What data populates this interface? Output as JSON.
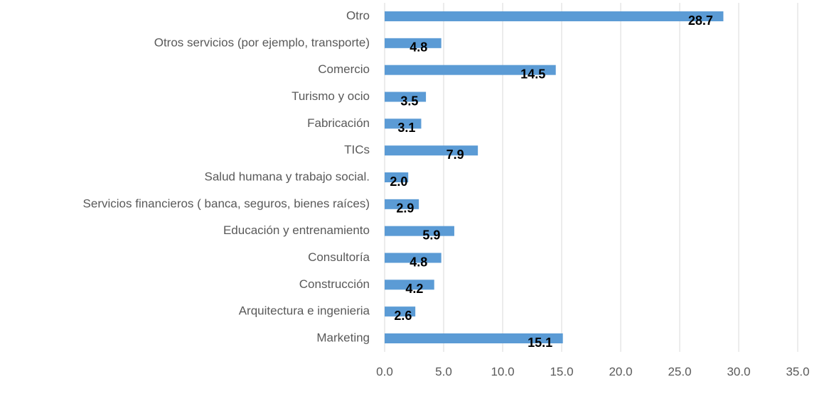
{
  "chart_data": {
    "type": "bar",
    "orientation": "horizontal",
    "categories": [
      "Otro",
      "Otros servicios (por ejemplo, transporte)",
      "Comercio ",
      "Turismo y ocio",
      "Fabricación",
      "TICs",
      "Salud humana y trabajo social.",
      "Servicios financieros ( banca, seguros, bienes raíces)",
      "Educación y entrenamiento",
      "Consultoría ",
      "Construcción",
      "Arquitectura e ingenieria",
      "Marketing"
    ],
    "values": [
      28.7,
      4.8,
      14.5,
      3.5,
      3.1,
      7.9,
      2.0,
      2.9,
      5.9,
      4.8,
      4.2,
      2.6,
      15.1
    ],
    "value_labels": [
      "28.7",
      "4.8",
      "14.5",
      "3.5",
      "3.1",
      "7.9",
      "2.0",
      "2.9",
      "5.9",
      "4.8",
      "4.2",
      "2.6",
      "15.1"
    ],
    "color": "#5b9bd5",
    "xlim": [
      0,
      35
    ],
    "xticks": [
      {
        "value": 0,
        "label": "0.0"
      },
      {
        "value": 5,
        "label": "5.0"
      },
      {
        "value": 10,
        "label": "10.0"
      },
      {
        "value": 15,
        "label": "15.0"
      },
      {
        "value": 20,
        "label": "20.0"
      },
      {
        "value": 25,
        "label": "25.0"
      },
      {
        "value": 30,
        "label": "30.0"
      },
      {
        "value": 35,
        "label": "35.0"
      }
    ],
    "grid": true
  }
}
